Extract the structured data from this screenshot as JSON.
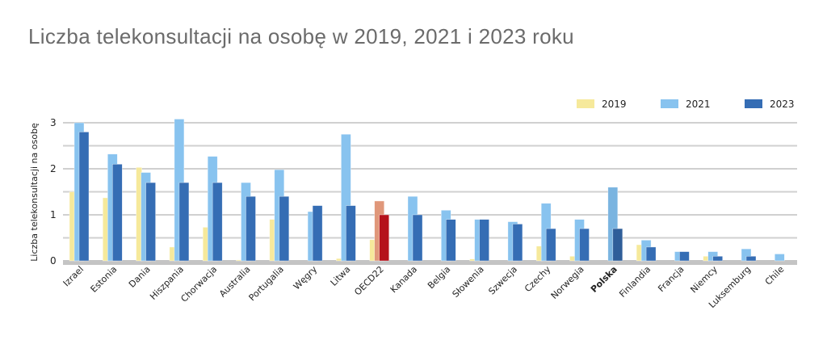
{
  "chart_data": {
    "type": "bar",
    "title": "Liczba telekonsultacji na osobę w 2019, 2021 i 2023 roku",
    "ylabel": "Liczba telekonsultacji na osobę",
    "xlabel": "",
    "ylim": [
      0,
      3
    ],
    "yticks": [
      0,
      1,
      2,
      3
    ],
    "grid": true,
    "legend_position": "top-right",
    "categories": [
      "Izrael",
      "Estonia",
      "Dania",
      "Hiszpania",
      "Chorwacja",
      "Australia",
      "Portugalia",
      "Węgry",
      "Litwa",
      "OECD22",
      "Kanada",
      "Belgia",
      "Słowenia",
      "Szwecja",
      "Czechy",
      "Norwegia",
      "Polska",
      "Finlandia",
      "Francja",
      "Niemcy",
      "Luksemburg",
      "Chile"
    ],
    "highlight": {
      "OECD22": {
        "2021": "#e0977a",
        "2023": "#b5121b"
      },
      "Polska": {
        "2021": "#7ab4e0",
        "2023": "#2f5e99"
      }
    },
    "bold_categories": [
      "Polska"
    ],
    "series": [
      {
        "name": "2019",
        "color": "#f6e99b",
        "values": [
          1.5,
          1.37,
          2.03,
          0.3,
          0.73,
          0.02,
          0.9,
          null,
          0.05,
          0.46,
          null,
          null,
          0.04,
          null,
          0.32,
          0.1,
          null,
          0.35,
          null,
          0.1,
          null,
          null
        ]
      },
      {
        "name": "2021",
        "color": "#88c3ef",
        "values": [
          3.0,
          2.32,
          1.92,
          3.08,
          2.27,
          1.7,
          1.98,
          1.07,
          2.75,
          1.3,
          1.4,
          1.1,
          0.9,
          0.85,
          1.25,
          0.9,
          1.6,
          0.45,
          0.2,
          0.2,
          0.26,
          0.15
        ]
      },
      {
        "name": "2023",
        "color": "#356db4",
        "values": [
          2.8,
          2.1,
          1.7,
          1.7,
          1.7,
          1.4,
          1.4,
          1.2,
          1.2,
          1.0,
          1.0,
          0.9,
          0.9,
          0.8,
          0.7,
          0.7,
          0.7,
          0.3,
          0.2,
          0.1,
          0.1,
          null
        ]
      }
    ]
  }
}
